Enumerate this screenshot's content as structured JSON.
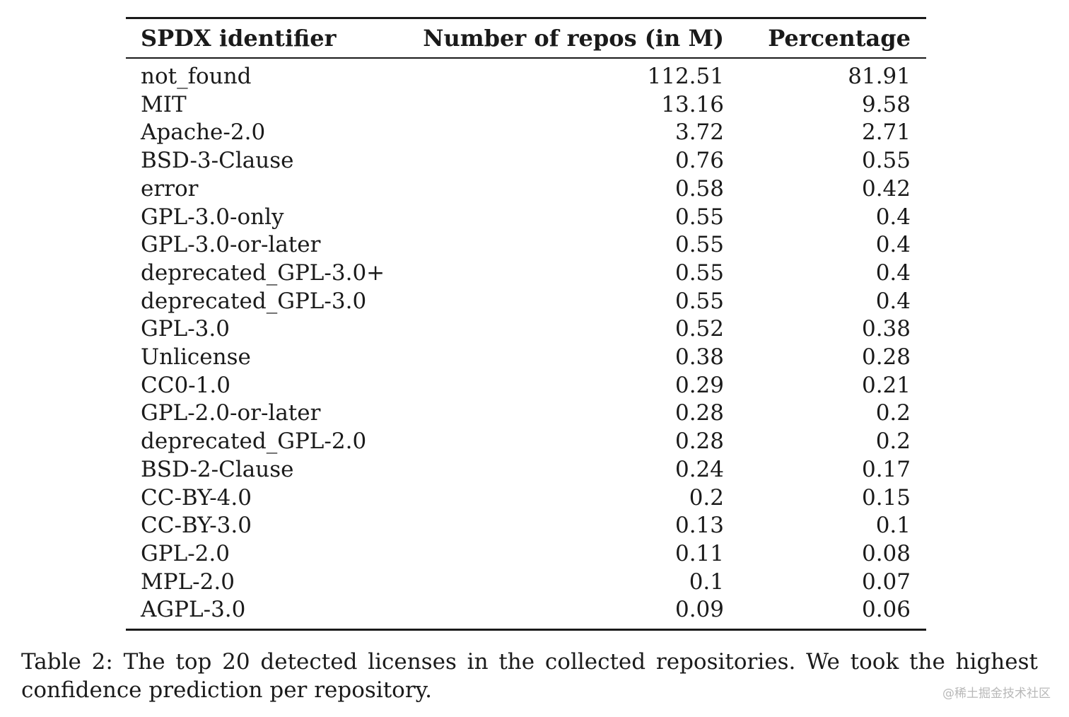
{
  "table": {
    "headers": [
      "SPDX identifier",
      "Number of repos (in M)",
      "Percentage"
    ],
    "rows": [
      {
        "id": "not_found",
        "repos": "112.51",
        "pct": "81.91"
      },
      {
        "id": "MIT",
        "repos": "13.16",
        "pct": "9.58"
      },
      {
        "id": "Apache-2.0",
        "repos": "3.72",
        "pct": "2.71"
      },
      {
        "id": "BSD-3-Clause",
        "repos": "0.76",
        "pct": "0.55"
      },
      {
        "id": "error",
        "repos": "0.58",
        "pct": "0.42"
      },
      {
        "id": "GPL-3.0-only",
        "repos": "0.55",
        "pct": "0.4"
      },
      {
        "id": "GPL-3.0-or-later",
        "repos": "0.55",
        "pct": "0.4"
      },
      {
        "id": "deprecated_GPL-3.0+",
        "repos": "0.55",
        "pct": "0.4"
      },
      {
        "id": "deprecated_GPL-3.0",
        "repos": "0.55",
        "pct": "0.4"
      },
      {
        "id": "GPL-3.0",
        "repos": "0.52",
        "pct": "0.38"
      },
      {
        "id": "Unlicense",
        "repos": "0.38",
        "pct": "0.28"
      },
      {
        "id": "CC0-1.0",
        "repos": "0.29",
        "pct": "0.21"
      },
      {
        "id": "GPL-2.0-or-later",
        "repos": "0.28",
        "pct": "0.2"
      },
      {
        "id": "deprecated_GPL-2.0",
        "repos": "0.28",
        "pct": "0.2"
      },
      {
        "id": "BSD-2-Clause",
        "repos": "0.24",
        "pct": "0.17"
      },
      {
        "id": "CC-BY-4.0",
        "repos": "0.2",
        "pct": "0.15"
      },
      {
        "id": "CC-BY-3.0",
        "repos": "0.13",
        "pct": "0.1"
      },
      {
        "id": "GPL-2.0",
        "repos": "0.11",
        "pct": "0.08"
      },
      {
        "id": "MPL-2.0",
        "repos": "0.1",
        "pct": "0.07"
      },
      {
        "id": "AGPL-3.0",
        "repos": "0.09",
        "pct": "0.06"
      }
    ]
  },
  "caption": "Table 2: The top 20 detected licenses in the collected repositories. We took the highest confidence prediction per repository.",
  "watermark": "@稀土掘金技术社区"
}
